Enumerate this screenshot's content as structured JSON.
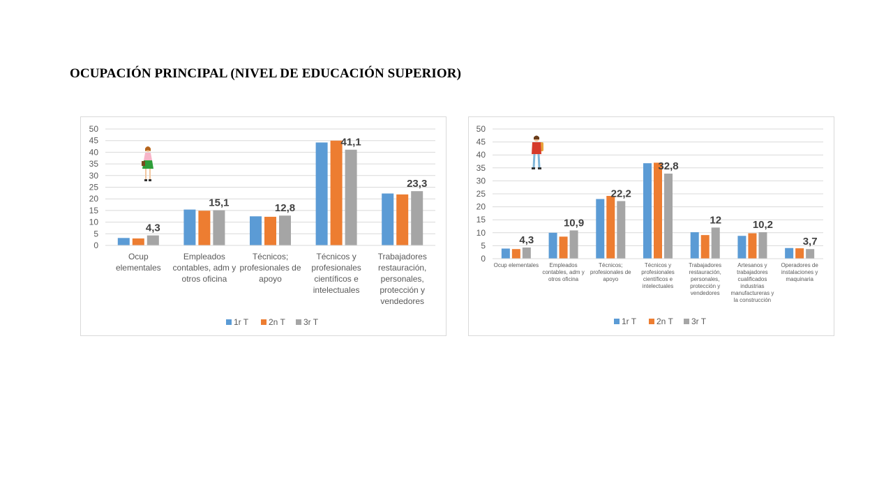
{
  "slide": {
    "title": "OCUPACIÓN PRINCIPAL (NIVEL DE EDUCACIÓN SUPERIOR)"
  },
  "colors": {
    "series1": "#5b9bd5",
    "series2": "#ed7d31",
    "series3": "#a5a5a5",
    "grid": "#d9d9d9",
    "text": "#595959",
    "label": "#404040"
  },
  "icons": [
    "woman-figure-icon",
    "man-figure-icon"
  ],
  "chart_data": [
    {
      "type": "bar",
      "categories": [
        [
          "Ocup",
          "elementales"
        ],
        [
          "Empleados",
          "contables, adm y",
          "otros oficina"
        ],
        [
          "Técnicos;",
          "profesionales de",
          "apoyo"
        ],
        [
          "Técnicos y",
          "profesionales",
          "científicos e",
          "intelectuales"
        ],
        [
          "Trabajadores",
          "restauración,",
          "personales,",
          "protección y",
          "vendedores"
        ]
      ],
      "series": [
        {
          "name": "1r T",
          "values": [
            3.2,
            15.4,
            12.5,
            44.2,
            22.3
          ]
        },
        {
          "name": "2n T",
          "values": [
            3.0,
            14.9,
            12.3,
            45.0,
            21.9
          ]
        },
        {
          "name": "3r T",
          "values": [
            4.3,
            15.1,
            12.8,
            41.1,
            23.3
          ]
        }
      ],
      "data_labels": [
        "4,3",
        "15,1",
        "12,8",
        "41,1",
        "23,3"
      ],
      "ylim": [
        0,
        50
      ],
      "yticks": [
        0,
        5,
        10,
        15,
        20,
        25,
        30,
        35,
        40,
        45,
        50
      ],
      "grid": true,
      "legend": "bottom"
    },
    {
      "type": "bar",
      "categories": [
        [
          "Ocup elementales"
        ],
        [
          "Empleados",
          "contables, adm y",
          "otros oficina"
        ],
        [
          "Técnicos;",
          "profesionales de",
          "apoyo"
        ],
        [
          "Técnicos y",
          "profesionales",
          "científicos e",
          "intelectuales"
        ],
        [
          "Trabajadores",
          "restauración,",
          "personales,",
          "protección y",
          "vendedores"
        ],
        [
          "Artesanos y",
          "trabajadores",
          "cualificados",
          "industrias",
          "manufactureras y",
          "la construcción"
        ],
        [
          "Operadores de",
          "instalaciones y",
          "maquinaria"
        ]
      ],
      "series": [
        {
          "name": "1r T",
          "values": [
            3.9,
            10.0,
            23.0,
            36.8,
            10.2,
            8.8,
            4.1
          ]
        },
        {
          "name": "2n T",
          "values": [
            3.7,
            8.5,
            24.2,
            37.0,
            9.1,
            9.8,
            4.0
          ]
        },
        {
          "name": "3r T",
          "values": [
            4.3,
            10.9,
            22.2,
            32.8,
            12.0,
            10.2,
            3.7
          ]
        }
      ],
      "data_labels": [
        "4,3",
        "10,9",
        "22,2",
        "32,8",
        "12",
        "10,2",
        "3,7"
      ],
      "ylim": [
        0,
        50
      ],
      "yticks": [
        0,
        5,
        10,
        15,
        20,
        25,
        30,
        35,
        40,
        45,
        50
      ],
      "grid": true,
      "legend": "bottom"
    }
  ]
}
